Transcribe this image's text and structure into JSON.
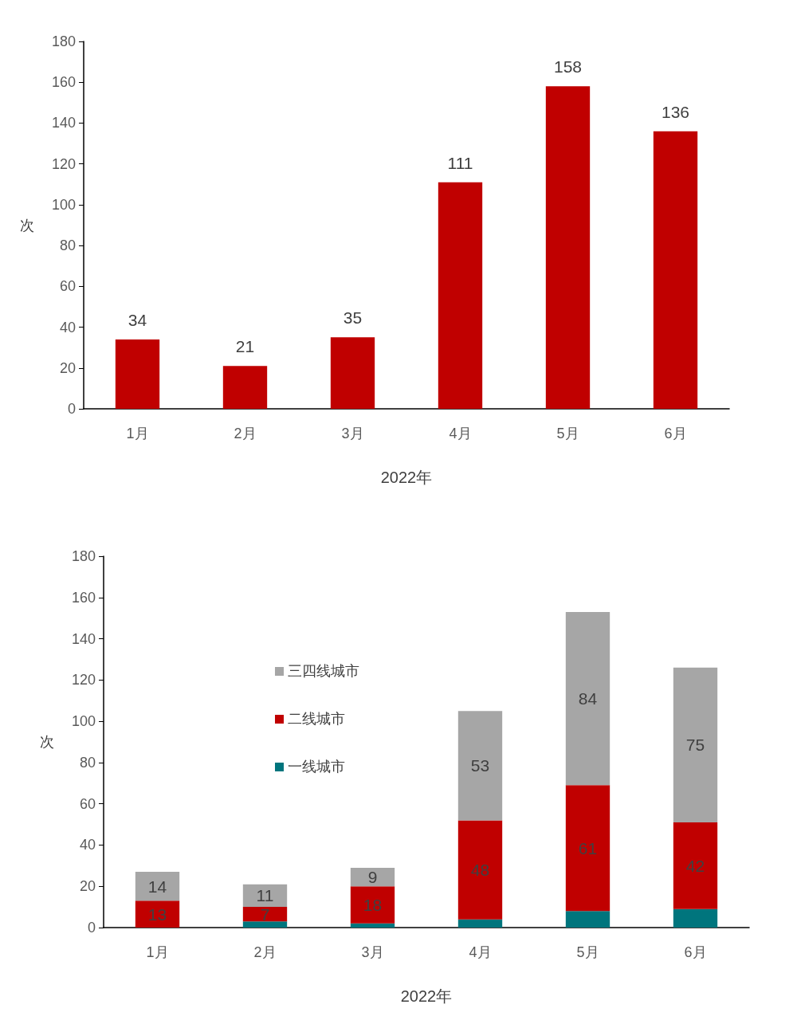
{
  "chart_data": [
    {
      "type": "bar",
      "categories": [
        "1月",
        "2月",
        "3月",
        "4月",
        "5月",
        "6月"
      ],
      "values": [
        34,
        21,
        35,
        111,
        158,
        136
      ],
      "color": "#c00000",
      "xlabel": "2022年",
      "ylabel": "次",
      "ylim": [
        0,
        180
      ],
      "yticks": [
        0,
        20,
        40,
        60,
        80,
        100,
        120,
        140,
        160,
        180
      ],
      "data_labels": true
    },
    {
      "type": "bar",
      "stacked": true,
      "categories": [
        "1月",
        "2月",
        "3月",
        "4月",
        "5月",
        "6月"
      ],
      "xlabel": "2022年",
      "ylabel": "次",
      "ylim": [
        0,
        180
      ],
      "yticks": [
        0,
        20,
        40,
        60,
        80,
        100,
        120,
        140,
        160,
        180
      ],
      "legend": "left",
      "series": [
        {
          "name": "一线城市",
          "color": "#00757d",
          "values": [
            0,
            3,
            2,
            4,
            8,
            9
          ]
        },
        {
          "name": "二线城市",
          "color": "#c00000",
          "values": [
            13,
            7,
            18,
            48,
            61,
            42
          ],
          "value_labels": [
            "13",
            "7",
            "18",
            "48",
            "61",
            "42"
          ]
        },
        {
          "name": "三四线城市",
          "color": "#a6a6a6",
          "values": [
            14,
            11,
            9,
            53,
            84,
            75
          ],
          "value_labels": [
            "14",
            "11",
            "9",
            "53",
            "84",
            "75"
          ]
        }
      ]
    }
  ]
}
